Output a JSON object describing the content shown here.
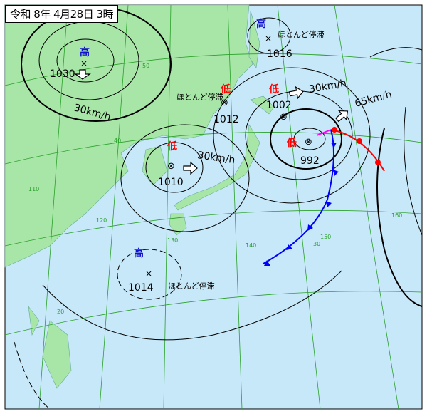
{
  "title": "令和 8年 4月28日 3時",
  "colors": {
    "sea": "#c7e8f8",
    "land": "#a8e6a8",
    "grid": "#2aa02a",
    "high": "#1010d0",
    "low": "#ff0000",
    "warm_front": "#ff0000",
    "cold_front": "#0000ff",
    "occluded_front": "#ff00ff"
  },
  "systems": [
    {
      "type": "high",
      "label": "高",
      "pressure": "1030",
      "motion": "30km/h"
    },
    {
      "type": "high",
      "label": "高",
      "pressure": "1016",
      "motion": "ほとんど停滞"
    },
    {
      "type": "low",
      "label": "低",
      "pressure": "1012",
      "motion": "ほとんど停滞"
    },
    {
      "type": "low",
      "label": "低",
      "pressure": "1010",
      "motion": "30km/h"
    },
    {
      "type": "low",
      "label": "低",
      "pressure": "1002",
      "motion": "30km/h"
    },
    {
      "type": "low",
      "label": "低",
      "pressure": "992",
      "motion": "65km/h"
    },
    {
      "type": "high",
      "label": "高",
      "pressure": "1014",
      "motion": "ほとんど停滞"
    }
  ],
  "grid_labels": {
    "lat": [
      "50",
      "40",
      "30",
      "20"
    ],
    "lon": [
      "110",
      "120",
      "130",
      "140",
      "150",
      "160"
    ]
  }
}
